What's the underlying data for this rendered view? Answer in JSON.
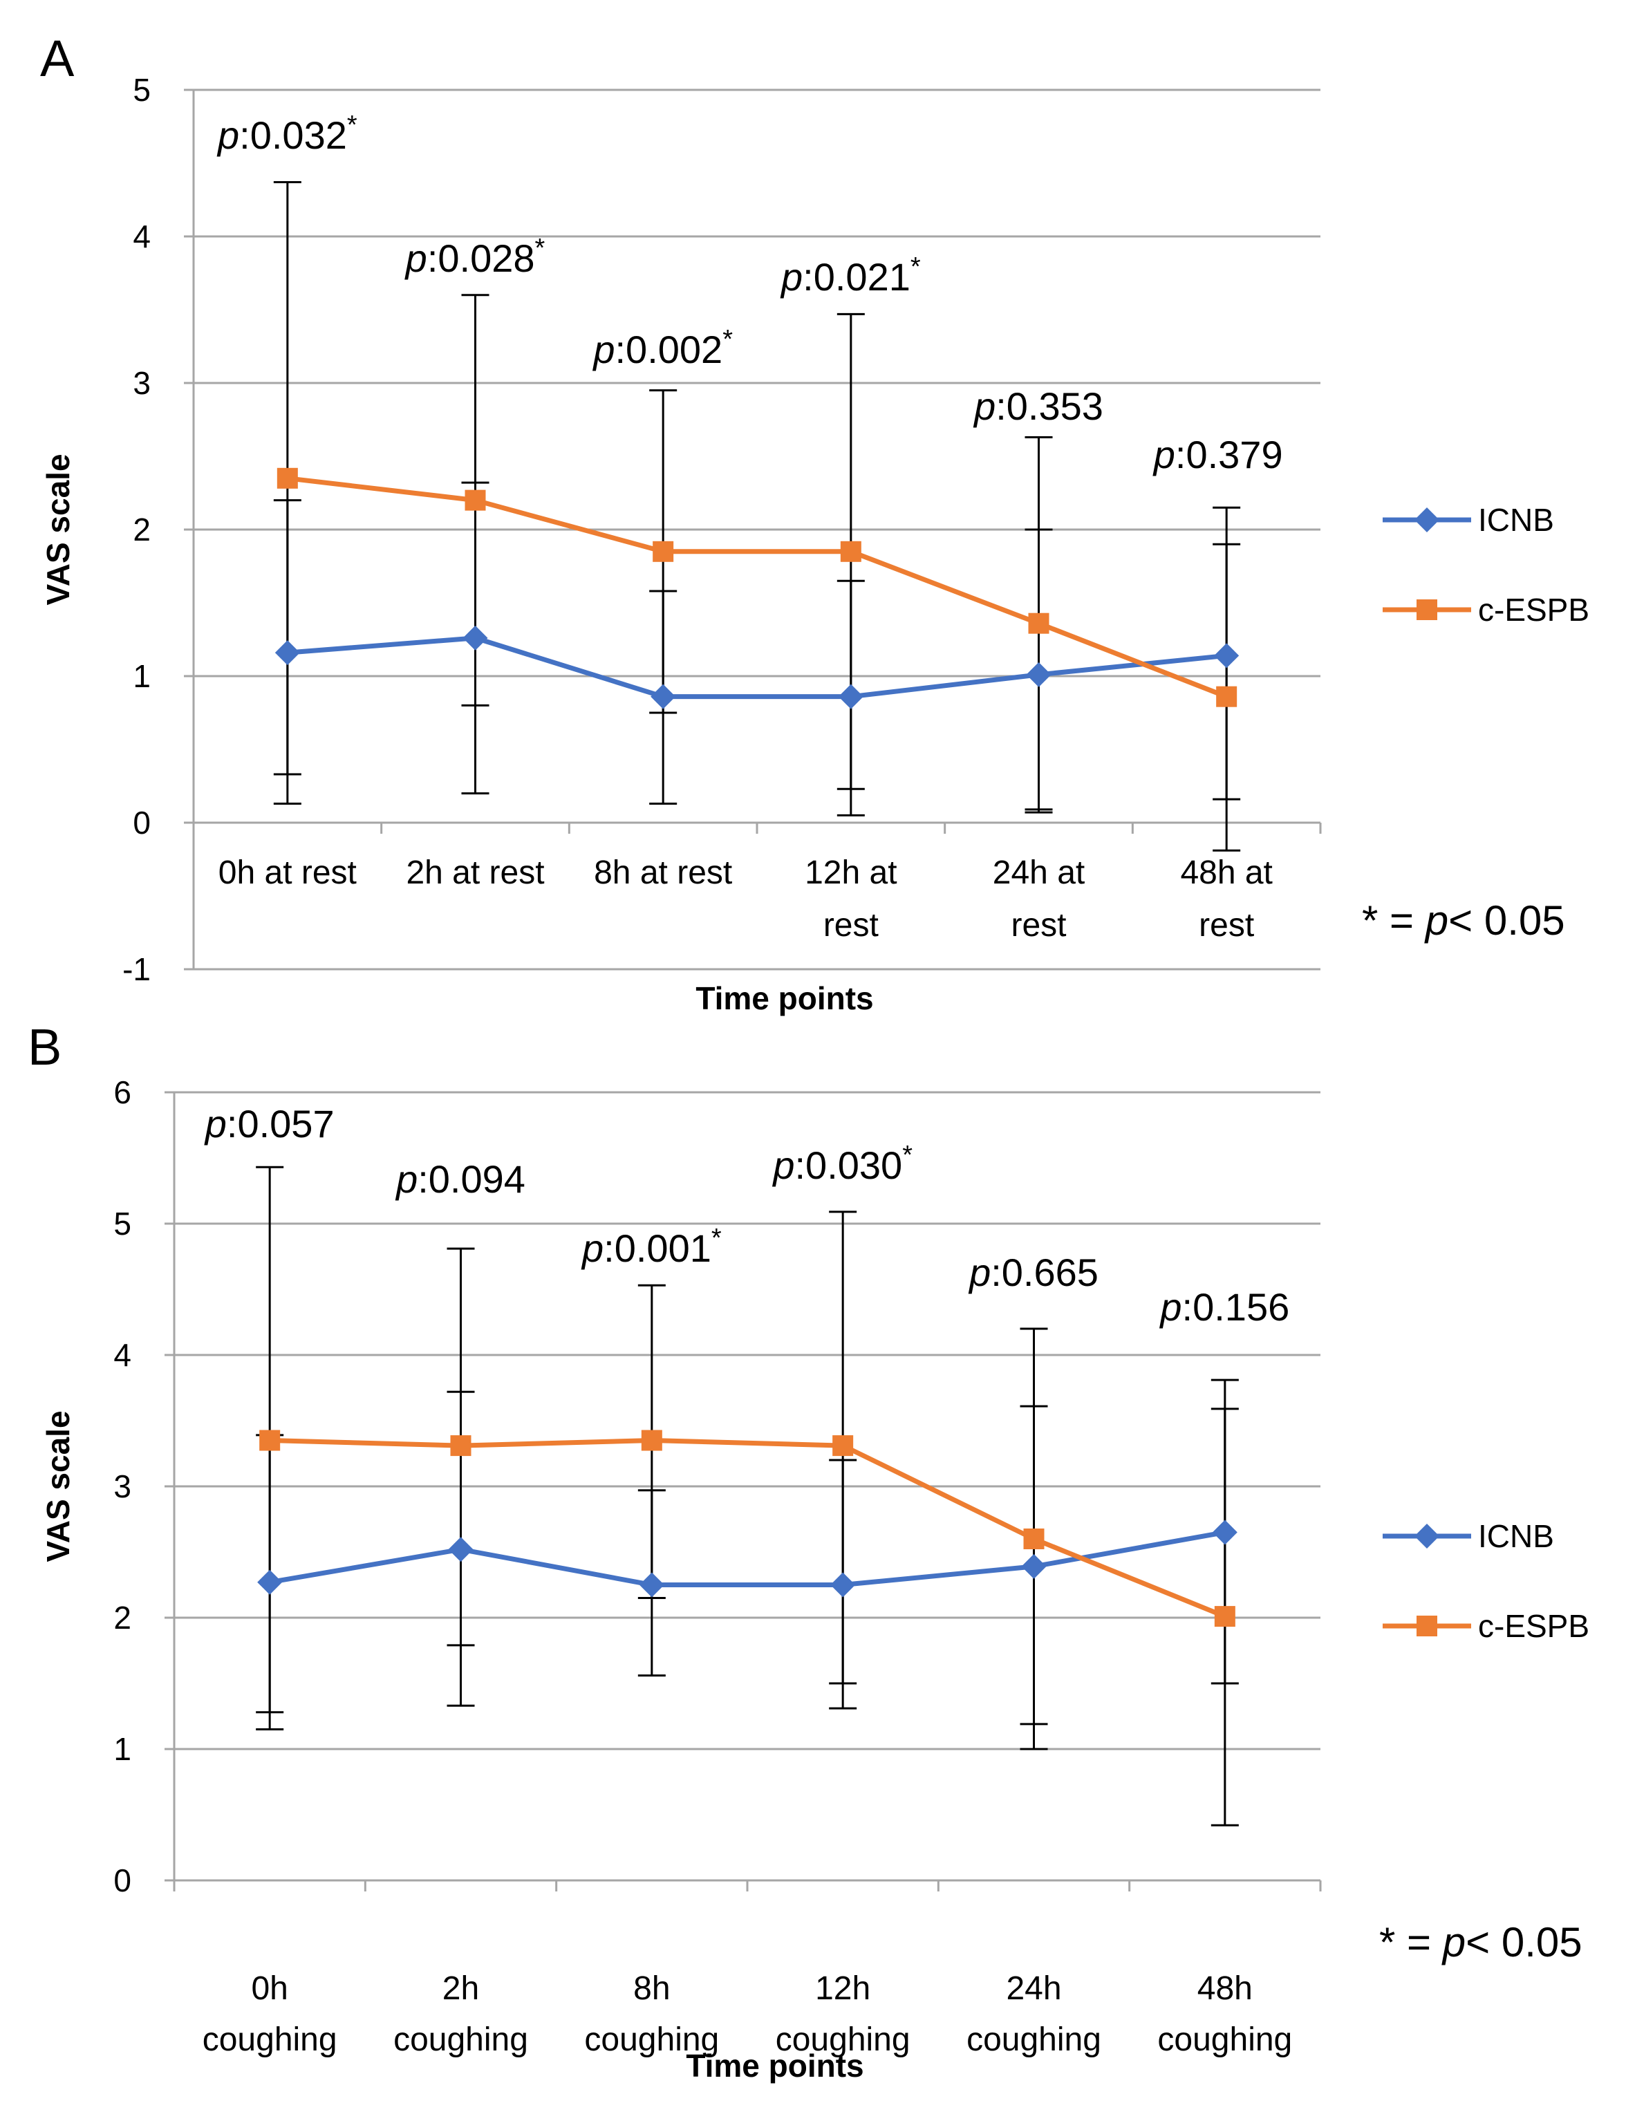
{
  "figure": {
    "significance_note": "* = p< 0.05"
  },
  "chart_data": [
    {
      "panel": "A",
      "type": "line",
      "title": "",
      "xlabel": "Time points",
      "ylabel": "VAS scale",
      "ylim": [
        -1,
        5
      ],
      "yticks": [
        -1,
        0,
        1,
        2,
        3,
        4,
        5
      ],
      "grid": true,
      "legend_position": "right",
      "categories": [
        [
          "0h at rest"
        ],
        [
          "2h at rest"
        ],
        [
          "8h at rest"
        ],
        [
          "12h at",
          "rest"
        ],
        [
          "24h at",
          "rest"
        ],
        [
          "48h at",
          "rest"
        ]
      ],
      "series": [
        {
          "name": "ICNB",
          "color": "#4472C4",
          "marker": "diamond",
          "values": [
            1.16,
            1.26,
            0.86,
            0.86,
            1.01,
            1.14
          ],
          "error_low": [
            0.13,
            0.2,
            0.13,
            0.05,
            0.07,
            -0.19
          ],
          "error_high": [
            2.2,
            2.32,
            1.58,
            1.65,
            2.0,
            1.9
          ]
        },
        {
          "name": "c-ESPB",
          "color": "#ED7D31",
          "marker": "square",
          "values": [
            2.35,
            2.2,
            1.85,
            1.85,
            1.36,
            0.86
          ],
          "error_low": [
            0.33,
            0.8,
            0.75,
            0.23,
            0.09,
            0.16
          ],
          "error_high": [
            4.37,
            3.6,
            2.95,
            3.47,
            2.63,
            2.15
          ]
        }
      ],
      "annotations": [
        {
          "label": "p",
          "value": ":0.032",
          "star": "*"
        },
        {
          "label": "p",
          "value": ":0.028",
          "star": "*"
        },
        {
          "label": "p",
          "value": ":0.002",
          "star": "*"
        },
        {
          "label": "p",
          "value": ":0.021",
          "star": "*"
        },
        {
          "label": "p",
          "value": ":0.353",
          "star": ""
        },
        {
          "label": "p",
          "value": ":0.379",
          "star": ""
        }
      ]
    },
    {
      "panel": "B",
      "type": "line",
      "title": "",
      "xlabel": "Time points",
      "ylabel": "VAS scale",
      "ylim": [
        0,
        6
      ],
      "yticks": [
        0,
        1,
        2,
        3,
        4,
        5,
        6
      ],
      "grid": true,
      "legend_position": "right",
      "categories": [
        [
          "0h",
          "coughing"
        ],
        [
          "2h",
          "coughing"
        ],
        [
          "8h",
          "coughing"
        ],
        [
          "12h",
          "coughing"
        ],
        [
          "24h",
          "coughing"
        ],
        [
          "48h",
          "coughing"
        ]
      ],
      "series": [
        {
          "name": "ICNB",
          "color": "#4472C4",
          "marker": "diamond",
          "values": [
            2.27,
            2.52,
            2.25,
            2.25,
            2.39,
            2.65
          ],
          "error_low": [
            1.15,
            1.33,
            1.56,
            1.31,
            1.0,
            0.42
          ],
          "error_high": [
            3.39,
            3.72,
            2.97,
            3.2,
            3.61,
            3.59
          ]
        },
        {
          "name": "c-ESPB",
          "color": "#ED7D31",
          "marker": "square",
          "values": [
            3.35,
            3.31,
            3.35,
            3.31,
            2.6,
            2.01
          ],
          "error_low": [
            1.28,
            1.79,
            2.15,
            1.5,
            1.19,
            1.5
          ],
          "error_high": [
            5.43,
            4.81,
            4.53,
            5.09,
            4.2,
            3.81
          ]
        }
      ],
      "annotations": [
        {
          "label": "p",
          "value": ":0.057",
          "star": ""
        },
        {
          "label": "p",
          "value": ":0.094",
          "star": ""
        },
        {
          "label": "p",
          "value": ":0.001",
          "star": "*"
        },
        {
          "label": "p",
          "value": ":0.030",
          "star": "*"
        },
        {
          "label": "p",
          "value": ":0.665",
          "star": ""
        },
        {
          "label": "p",
          "value": ":0.156",
          "star": ""
        }
      ]
    }
  ]
}
